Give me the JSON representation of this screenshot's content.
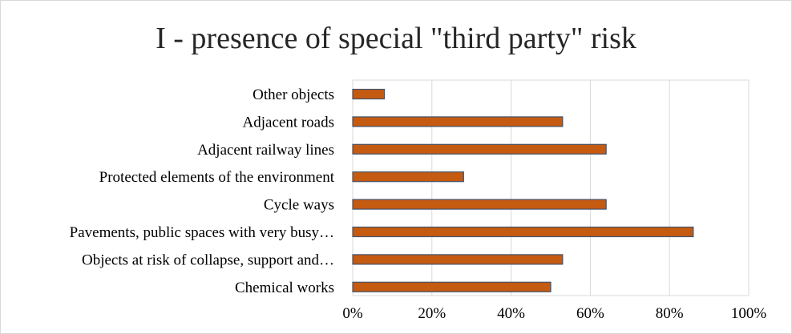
{
  "chart_data": {
    "type": "bar",
    "orientation": "horizontal",
    "title": "I - presence of special \"third party\" risk",
    "categories": [
      "Other objects",
      "Adjacent roads",
      "Adjacent railway lines",
      "Protected elements of the environment",
      "Cycle ways",
      "Pavements, public spaces with very busy…",
      "Objects at risk of collapse, support and…",
      "Chemical works"
    ],
    "values": [
      8,
      53,
      64,
      28,
      64,
      86,
      53,
      50
    ],
    "xlim": [
      0,
      100
    ],
    "x_ticks": [
      "0%",
      "20%",
      "40%",
      "60%",
      "80%",
      "100%"
    ],
    "grid": true,
    "legend": "none",
    "colors": {
      "bar_fill": "#c55a11",
      "bar_stroke": "#44546a",
      "grid": "#d9d9d9"
    }
  }
}
